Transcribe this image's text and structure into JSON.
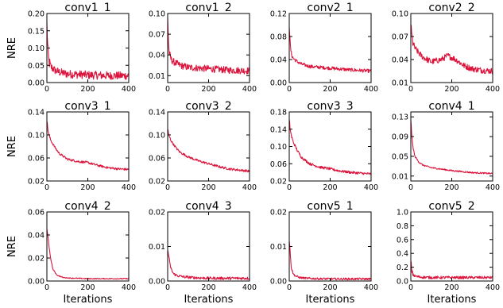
{
  "figure": {
    "line_color": "#dc143c",
    "ylabel_text": "NRE",
    "xlabel_text": "Iterations"
  },
  "chart_data": [
    {
      "type": "line",
      "title": "conv1_1",
      "xlim": [
        0,
        400
      ],
      "ylim": [
        0,
        0.2
      ],
      "xticks": [
        "0",
        "200",
        "400"
      ],
      "yticks": [
        "0.00",
        "0.05",
        "0.10",
        "0.15",
        "0.20"
      ],
      "ytick_values": [
        0,
        0.05,
        0.1,
        0.15,
        0.2
      ],
      "ylabel": "NRE",
      "xlabel": "",
      "x": [
        0,
        5,
        10,
        20,
        40,
        60,
        100,
        200,
        300,
        400
      ],
      "y": [
        0.17,
        0.09,
        0.06,
        0.045,
        0.035,
        0.03,
        0.025,
        0.022,
        0.02,
        0.02
      ],
      "noise": 0.012
    },
    {
      "type": "line",
      "title": "conv1_2",
      "xlim": [
        0,
        400
      ],
      "ylim": [
        0,
        0.1
      ],
      "xticks": [
        "0",
        "200",
        "400"
      ],
      "yticks": [
        "0.01",
        "0.04",
        "0.07",
        "0.10"
      ],
      "ytick_values": [
        0.01,
        0.04,
        0.07,
        0.1
      ],
      "ylabel": "",
      "xlabel": "",
      "x": [
        0,
        5,
        10,
        20,
        40,
        60,
        100,
        200,
        300,
        400
      ],
      "y": [
        0.097,
        0.05,
        0.038,
        0.032,
        0.028,
        0.025,
        0.022,
        0.02,
        0.018,
        0.017
      ],
      "noise": 0.005
    },
    {
      "type": "line",
      "title": "conv2_1",
      "xlim": [
        0,
        400
      ],
      "ylim": [
        0,
        0.12
      ],
      "xticks": [
        "0",
        "200",
        "400"
      ],
      "yticks": [
        "0.00",
        "0.04",
        "0.08",
        "0.12"
      ],
      "ytick_values": [
        0,
        0.04,
        0.08,
        0.12
      ],
      "ylabel": "",
      "xlabel": "",
      "x": [
        0,
        5,
        10,
        20,
        40,
        60,
        100,
        200,
        300,
        400
      ],
      "y": [
        0.1,
        0.065,
        0.05,
        0.042,
        0.036,
        0.032,
        0.028,
        0.025,
        0.022,
        0.02
      ],
      "noise": 0.003
    },
    {
      "type": "line",
      "title": "conv2_2",
      "xlim": [
        0,
        400
      ],
      "ylim": [
        0.01,
        0.1
      ],
      "xticks": [
        "0",
        "200",
        "400"
      ],
      "yticks": [
        "0.01",
        "0.04",
        "0.07",
        "0.10"
      ],
      "ytick_values": [
        0.01,
        0.04,
        0.07,
        0.1
      ],
      "ylabel": "",
      "xlabel": "",
      "x": [
        0,
        5,
        10,
        20,
        40,
        60,
        100,
        150,
        180,
        220,
        260,
        300,
        350,
        400
      ],
      "y": [
        0.085,
        0.07,
        0.062,
        0.055,
        0.048,
        0.043,
        0.037,
        0.04,
        0.045,
        0.04,
        0.032,
        0.028,
        0.026,
        0.025
      ],
      "noise": 0.004
    },
    {
      "type": "line",
      "title": "conv3_1",
      "xlim": [
        0,
        400
      ],
      "ylim": [
        0.02,
        0.14
      ],
      "xticks": [
        "0",
        "200",
        "400"
      ],
      "yticks": [
        "0.02",
        "0.06",
        "0.10",
        "0.14"
      ],
      "ytick_values": [
        0.02,
        0.06,
        0.1,
        0.14
      ],
      "ylabel": "NRE",
      "xlabel": "",
      "x": [
        0,
        5,
        10,
        20,
        40,
        60,
        100,
        150,
        200,
        250,
        300,
        350,
        400
      ],
      "y": [
        0.125,
        0.11,
        0.1,
        0.09,
        0.078,
        0.068,
        0.058,
        0.054,
        0.052,
        0.047,
        0.043,
        0.041,
        0.04
      ],
      "noise": 0.002
    },
    {
      "type": "line",
      "title": "conv3_2",
      "xlim": [
        0,
        400
      ],
      "ylim": [
        0.02,
        0.14
      ],
      "xticks": [
        "0",
        "200",
        "400"
      ],
      "yticks": [
        "0.02",
        "0.06",
        "0.10",
        "0.14"
      ],
      "ytick_values": [
        0.02,
        0.06,
        0.1,
        0.14
      ],
      "ylabel": "",
      "xlabel": "",
      "x": [
        0,
        5,
        10,
        20,
        40,
        60,
        100,
        150,
        200,
        250,
        300,
        350,
        400
      ],
      "y": [
        0.11,
        0.1,
        0.095,
        0.088,
        0.078,
        0.07,
        0.062,
        0.055,
        0.05,
        0.045,
        0.041,
        0.039,
        0.037
      ],
      "noise": 0.002
    },
    {
      "type": "line",
      "title": "conv3_3",
      "xlim": [
        0,
        400
      ],
      "ylim": [
        0.02,
        0.18
      ],
      "xticks": [
        "0",
        "200",
        "400"
      ],
      "yticks": [
        "0.02",
        "0.06",
        "0.10",
        "0.14",
        "0.18"
      ],
      "ytick_values": [
        0.02,
        0.06,
        0.1,
        0.14,
        0.18
      ],
      "ylabel": "",
      "xlabel": "",
      "x": [
        0,
        5,
        10,
        20,
        40,
        60,
        100,
        150,
        200,
        250,
        300,
        350,
        400
      ],
      "y": [
        0.16,
        0.14,
        0.125,
        0.11,
        0.09,
        0.075,
        0.06,
        0.052,
        0.048,
        0.043,
        0.04,
        0.038,
        0.036
      ],
      "noise": 0.003
    },
    {
      "type": "line",
      "title": "conv4_1",
      "xlim": [
        0,
        400
      ],
      "ylim": [
        0,
        0.14
      ],
      "xticks": [
        "0",
        "200",
        "400"
      ],
      "yticks": [
        "0.01",
        "0.05",
        "0.09",
        "0.13"
      ],
      "ytick_values": [
        0.01,
        0.05,
        0.09,
        0.13
      ],
      "ylabel": "",
      "xlabel": "",
      "x": [
        0,
        5,
        10,
        20,
        40,
        60,
        100,
        150,
        200,
        250,
        300,
        350,
        400
      ],
      "y": [
        0.125,
        0.09,
        0.07,
        0.05,
        0.038,
        0.032,
        0.027,
        0.024,
        0.021,
        0.019,
        0.017,
        0.016,
        0.015
      ],
      "noise": 0.0015
    },
    {
      "type": "line",
      "title": "conv4_2",
      "xlim": [
        0,
        400
      ],
      "ylim": [
        0,
        0.06
      ],
      "xticks": [
        "0",
        "200",
        "400"
      ],
      "yticks": [
        "0.00",
        "0.02",
        "0.04",
        "0.06"
      ],
      "ytick_values": [
        0,
        0.02,
        0.04,
        0.06
      ],
      "ylabel": "NRE",
      "xlabel": "Iterations",
      "x": [
        0,
        5,
        10,
        20,
        30,
        50,
        80,
        120,
        200,
        300,
        400
      ],
      "y": [
        0.045,
        0.04,
        0.03,
        0.018,
        0.01,
        0.005,
        0.003,
        0.0025,
        0.002,
        0.002,
        0.002
      ],
      "noise": 0.0004
    },
    {
      "type": "line",
      "title": "conv4_3",
      "xlim": [
        0,
        400
      ],
      "ylim": [
        0,
        0.02
      ],
      "xticks": [
        "0",
        "200",
        "400"
      ],
      "yticks": [
        "0.00",
        "0.01",
        "0.02"
      ],
      "ytick_values": [
        0,
        0.01,
        0.02
      ],
      "ylabel": "",
      "xlabel": "Iterations",
      "x": [
        0,
        5,
        10,
        20,
        30,
        50,
        80,
        120,
        200,
        300,
        400
      ],
      "y": [
        0.009,
        0.0075,
        0.005,
        0.003,
        0.002,
        0.0015,
        0.0012,
        0.001,
        0.0008,
        0.0008,
        0.0008
      ],
      "noise": 0.0004
    },
    {
      "type": "line",
      "title": "conv5_1",
      "xlim": [
        0,
        400
      ],
      "ylim": [
        0,
        0.02
      ],
      "xticks": [
        "0",
        "200",
        "400"
      ],
      "yticks": [
        "0.00",
        "0.01",
        "0.02"
      ],
      "ytick_values": [
        0,
        0.01,
        0.02
      ],
      "ylabel": "",
      "xlabel": "Iterations",
      "x": [
        0,
        5,
        10,
        20,
        30,
        50,
        80,
        120,
        200,
        300,
        400
      ],
      "y": [
        0.012,
        0.008,
        0.004,
        0.002,
        0.0015,
        0.001,
        0.0008,
        0.0007,
        0.0006,
        0.0006,
        0.0006
      ],
      "noise": 0.0003
    },
    {
      "type": "line",
      "title": "conv5_2",
      "xlim": [
        0,
        400
      ],
      "ylim": [
        0,
        1.0
      ],
      "xticks": [
        "0",
        "200",
        "400"
      ],
      "yticks": [
        "0.0",
        "0.2",
        "0.4",
        "0.6",
        "0.8",
        "1.0"
      ],
      "ytick_values": [
        0,
        0.2,
        0.4,
        0.6,
        0.8,
        1.0
      ],
      "ylabel": "",
      "xlabel": "Iterations",
      "x": [
        0,
        5,
        10,
        20,
        40,
        60,
        100,
        200,
        300,
        400
      ],
      "y": [
        0.3,
        0.15,
        0.1,
        0.07,
        0.06,
        0.055,
        0.05,
        0.05,
        0.05,
        0.05
      ],
      "noise": 0.02
    }
  ]
}
